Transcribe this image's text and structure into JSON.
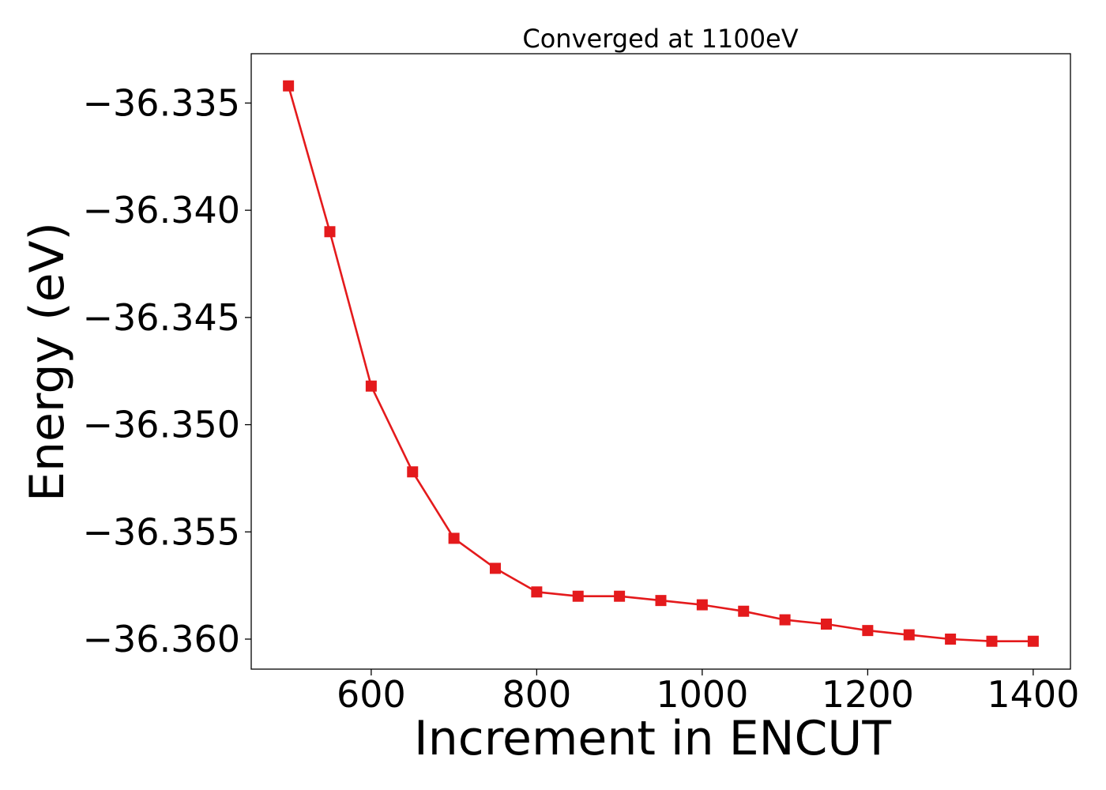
{
  "chart_data": {
    "type": "line",
    "title": "Converged at 1100eV",
    "xlabel": "Increment in ENCUT",
    "ylabel": "Energy (eV)",
    "xlim": [
      455,
      1445
    ],
    "ylim": [
      -36.3614,
      -36.3327
    ],
    "x_ticks": [
      600,
      800,
      1000,
      1200,
      1400
    ],
    "x_tick_labels": [
      "600",
      "800",
      "1000",
      "1200",
      "1400"
    ],
    "y_ticks": [
      -36.335,
      -36.34,
      -36.345,
      -36.35,
      -36.355,
      -36.36
    ],
    "y_tick_labels": [
      "−36.335",
      "−36.340",
      "−36.345",
      "−36.350",
      "−36.355",
      "−36.360"
    ],
    "grid": false,
    "legend": "none",
    "series": [
      {
        "color": "#e41a1c",
        "marker": "square",
        "x": [
          500,
          550,
          600,
          650,
          700,
          750,
          800,
          850,
          900,
          950,
          1000,
          1050,
          1100,
          1150,
          1200,
          1250,
          1300,
          1350,
          1400
        ],
        "y": [
          -36.3342,
          -36.341,
          -36.3482,
          -36.3522,
          -36.3553,
          -36.3567,
          -36.3578,
          -36.358,
          -36.358,
          -36.3582,
          -36.3584,
          -36.3587,
          -36.3591,
          -36.3593,
          -36.3596,
          -36.3598,
          -36.36,
          -36.3601,
          -36.3601
        ]
      }
    ]
  }
}
